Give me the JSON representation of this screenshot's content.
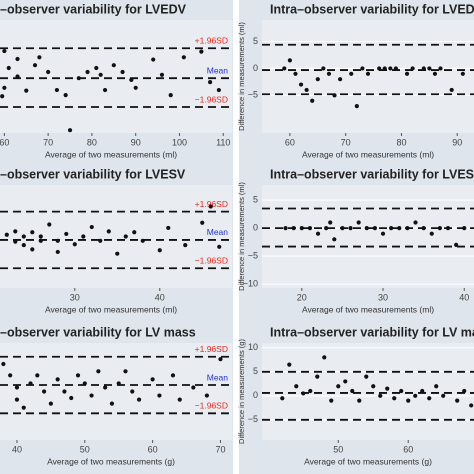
{
  "chart_data": [
    {
      "type": "scatter",
      "title": "–observer variability for LVEDV",
      "xlabel": "Average of two measurements (ml)",
      "x": [
        60,
        63,
        61,
        63,
        60,
        59.5,
        65,
        67,
        68,
        70,
        72,
        74,
        75,
        77,
        79,
        81,
        82,
        83,
        85,
        87,
        89,
        90,
        94,
        96,
        98,
        101,
        105,
        107,
        109
      ],
      "y": [
        4.5,
        3.1,
        1.5,
        0,
        -2,
        -3.5,
        -2.5,
        2,
        3.4,
        0.8,
        -2.4,
        -3.3,
        -9.5,
        -0.3,
        0.8,
        1.5,
        0.3,
        -2.4,
        2,
        0.8,
        -0.6,
        -2,
        3,
        0.3,
        -3.3,
        3.4,
        4.4,
        -1,
        -2.4
      ],
      "color": "#111111",
      "xlim": [
        59,
        112
      ],
      "ylim": [
        -10,
        10
      ],
      "xticks": [
        60,
        70,
        80,
        90,
        100,
        110
      ],
      "lines": [
        {
          "label": "+1.96SD",
          "value": 5,
          "color": "#e8291c"
        },
        {
          "label": "Mean",
          "value": -0.3,
          "color": "#1f2fd6"
        },
        {
          "label": "−1.96SD",
          "value": -5.4,
          "color": "#e8291c"
        }
      ]
    },
    {
      "type": "scatter",
      "title": "Intra–observer variability for LVEDV",
      "xlabel": "Average of two measurements (ml)",
      "ylabel": "Difference in measurements (ml)",
      "x": [
        59,
        60,
        61,
        62,
        63,
        64,
        65,
        66,
        67,
        68,
        69,
        71,
        72,
        73,
        74,
        76,
        77,
        78,
        79,
        81,
        82,
        84,
        85,
        86,
        87,
        89,
        91
      ],
      "y": [
        0,
        1.5,
        -1,
        -3,
        -4,
        -6,
        -2,
        0,
        -1,
        -5,
        -2,
        -1,
        -7,
        0,
        -1,
        0,
        0,
        0,
        0,
        -1,
        0,
        0,
        0,
        -1,
        0,
        -4,
        -1
      ],
      "color": "#111111",
      "xlim": [
        55,
        93
      ],
      "ylim": [
        -12,
        9
      ],
      "xticks": [
        60,
        70,
        80,
        90
      ],
      "yticks": [
        {
          "value": -5,
          "label": "−5"
        },
        0,
        5
      ],
      "grid": true,
      "lines": [
        {
          "value": 4.4,
          "color": "#111111"
        },
        {
          "value": -0.3,
          "color": "#111111"
        },
        {
          "value": -4.8,
          "color": "#111111"
        }
      ]
    },
    {
      "type": "scatter",
      "title": "–observer variability for LVESV",
      "xlabel": "Average of two measurements (ml)",
      "x": [
        22,
        23,
        23,
        24,
        24,
        25,
        25,
        26,
        26,
        27,
        28,
        28,
        29,
        30,
        31,
        32,
        33,
        34,
        35,
        36,
        37,
        38,
        40,
        41,
        43,
        45,
        46,
        47
      ],
      "y": [
        0.2,
        0.6,
        -0.6,
        -1,
        0,
        0.5,
        -1.5,
        0,
        -0.5,
        1.4,
        -0.5,
        -1.8,
        0.3,
        -0.9,
        0,
        1.1,
        -0.5,
        0.6,
        -2,
        0,
        0.5,
        -0.5,
        -1.6,
        1,
        -1,
        1.6,
        3.5,
        -1.2
      ],
      "color": "#111111",
      "xlim": [
        21.2,
        48.5
      ],
      "ylim": [
        -6,
        6
      ],
      "xticks": [
        30,
        40
      ],
      "lines": [
        {
          "label": "+1.96SD",
          "value": 2.9,
          "color": "#e8291c"
        },
        {
          "label": "Mean",
          "value": -0.4,
          "color": "#1f2fd6"
        },
        {
          "label": "−1.96SD",
          "value": -3.7,
          "color": "#e8291c"
        }
      ]
    },
    {
      "type": "scatter",
      "title": "Intra–observer variability for LVESV",
      "xlabel": "Average of two measurements (ml)",
      "ylabel": "Difference in measurements (ml)",
      "x": [
        18,
        19,
        20,
        21,
        22,
        23,
        23.5,
        24,
        25,
        26,
        27,
        28,
        29,
        30,
        31,
        32,
        33,
        34,
        35,
        36,
        37,
        38,
        39,
        40
      ],
      "y": [
        0,
        0,
        0,
        0,
        -1,
        0,
        1,
        -2,
        0,
        0,
        1,
        0,
        0,
        -1,
        0,
        0,
        0,
        1,
        0,
        -1,
        0,
        0,
        -3,
        0
      ],
      "color": "#111111",
      "xlim": [
        15.1,
        41.2
      ],
      "ylim": [
        -10.7,
        7.7
      ],
      "xticks": [
        20,
        30,
        40
      ],
      "yticks": [
        {
          "value": -10,
          "label": "−10"
        },
        {
          "value": -5,
          "label": "−5"
        },
        0,
        5
      ],
      "grid": true,
      "lines": [
        {
          "value": 3.5,
          "color": "#111111"
        },
        {
          "value": 0,
          "color": "#111111"
        },
        {
          "value": -3.3,
          "color": "#111111"
        }
      ]
    },
    {
      "type": "scatter",
      "title": "–observer variability for LV mass",
      "xlabel": "Average of two measurements (g)",
      "x": [
        38,
        39,
        40,
        40,
        41,
        42,
        43,
        44,
        45,
        46,
        47,
        48,
        49,
        50,
        51,
        52,
        53,
        54,
        55,
        56,
        57,
        58,
        60,
        61,
        63,
        64,
        66,
        68,
        70
      ],
      "y": [
        3.4,
        2,
        0.5,
        -1,
        -2,
        1,
        2,
        0,
        -1.5,
        1.5,
        0,
        -0.8,
        2,
        1,
        -0.5,
        2.5,
        0.5,
        -1.5,
        1,
        2.5,
        0,
        -1,
        1.5,
        -0.5,
        2,
        -1,
        0.5,
        -0.5,
        4
      ],
      "color": "#111111",
      "xlim": [
        37.5,
        71.7
      ],
      "ylim": [
        -6,
        6
      ],
      "xticks": [
        40,
        50,
        60,
        70
      ],
      "lines": [
        {
          "label": "+1.96SD",
          "value": 4.3,
          "color": "#e8291c"
        },
        {
          "label": "Mean",
          "value": 0.8,
          "color": "#1f2fd6"
        },
        {
          "label": "−1.96SD",
          "value": -2.7,
          "color": "#e8291c"
        }
      ]
    },
    {
      "type": "scatter",
      "title": "Intra–observer variability for LV mass",
      "xlabel": "Average of two measurements (g)",
      "ylabel": "Difference in measurements (g)",
      "x": [
        42,
        43,
        44,
        45,
        46,
        47,
        48,
        49,
        50,
        51,
        52,
        53,
        54,
        55,
        56,
        57,
        58,
        59,
        60,
        61,
        62,
        63,
        64,
        65,
        67,
        68,
        69
      ],
      "y": [
        -0.5,
        6.5,
        2,
        0.5,
        1,
        4,
        8,
        -1,
        2,
        3,
        1,
        -1,
        4,
        2,
        0,
        1.5,
        -0.5,
        1,
        -1,
        0,
        1,
        -0.5,
        2,
        0,
        -1,
        1,
        -2
      ],
      "color": "#111111",
      "xlim": [
        39.1,
        69.4
      ],
      "ylim": [
        -9.2,
        11
      ],
      "xticks": [
        50,
        60
      ],
      "yticks": [
        {
          "value": -5,
          "label": "−5"
        },
        0,
        5,
        10
      ],
      "grid": true,
      "lines": [
        {
          "value": 5,
          "color": "#111111"
        },
        {
          "value": 0.6,
          "color": "#111111"
        },
        {
          "value": -5,
          "color": "#111111"
        }
      ]
    }
  ]
}
